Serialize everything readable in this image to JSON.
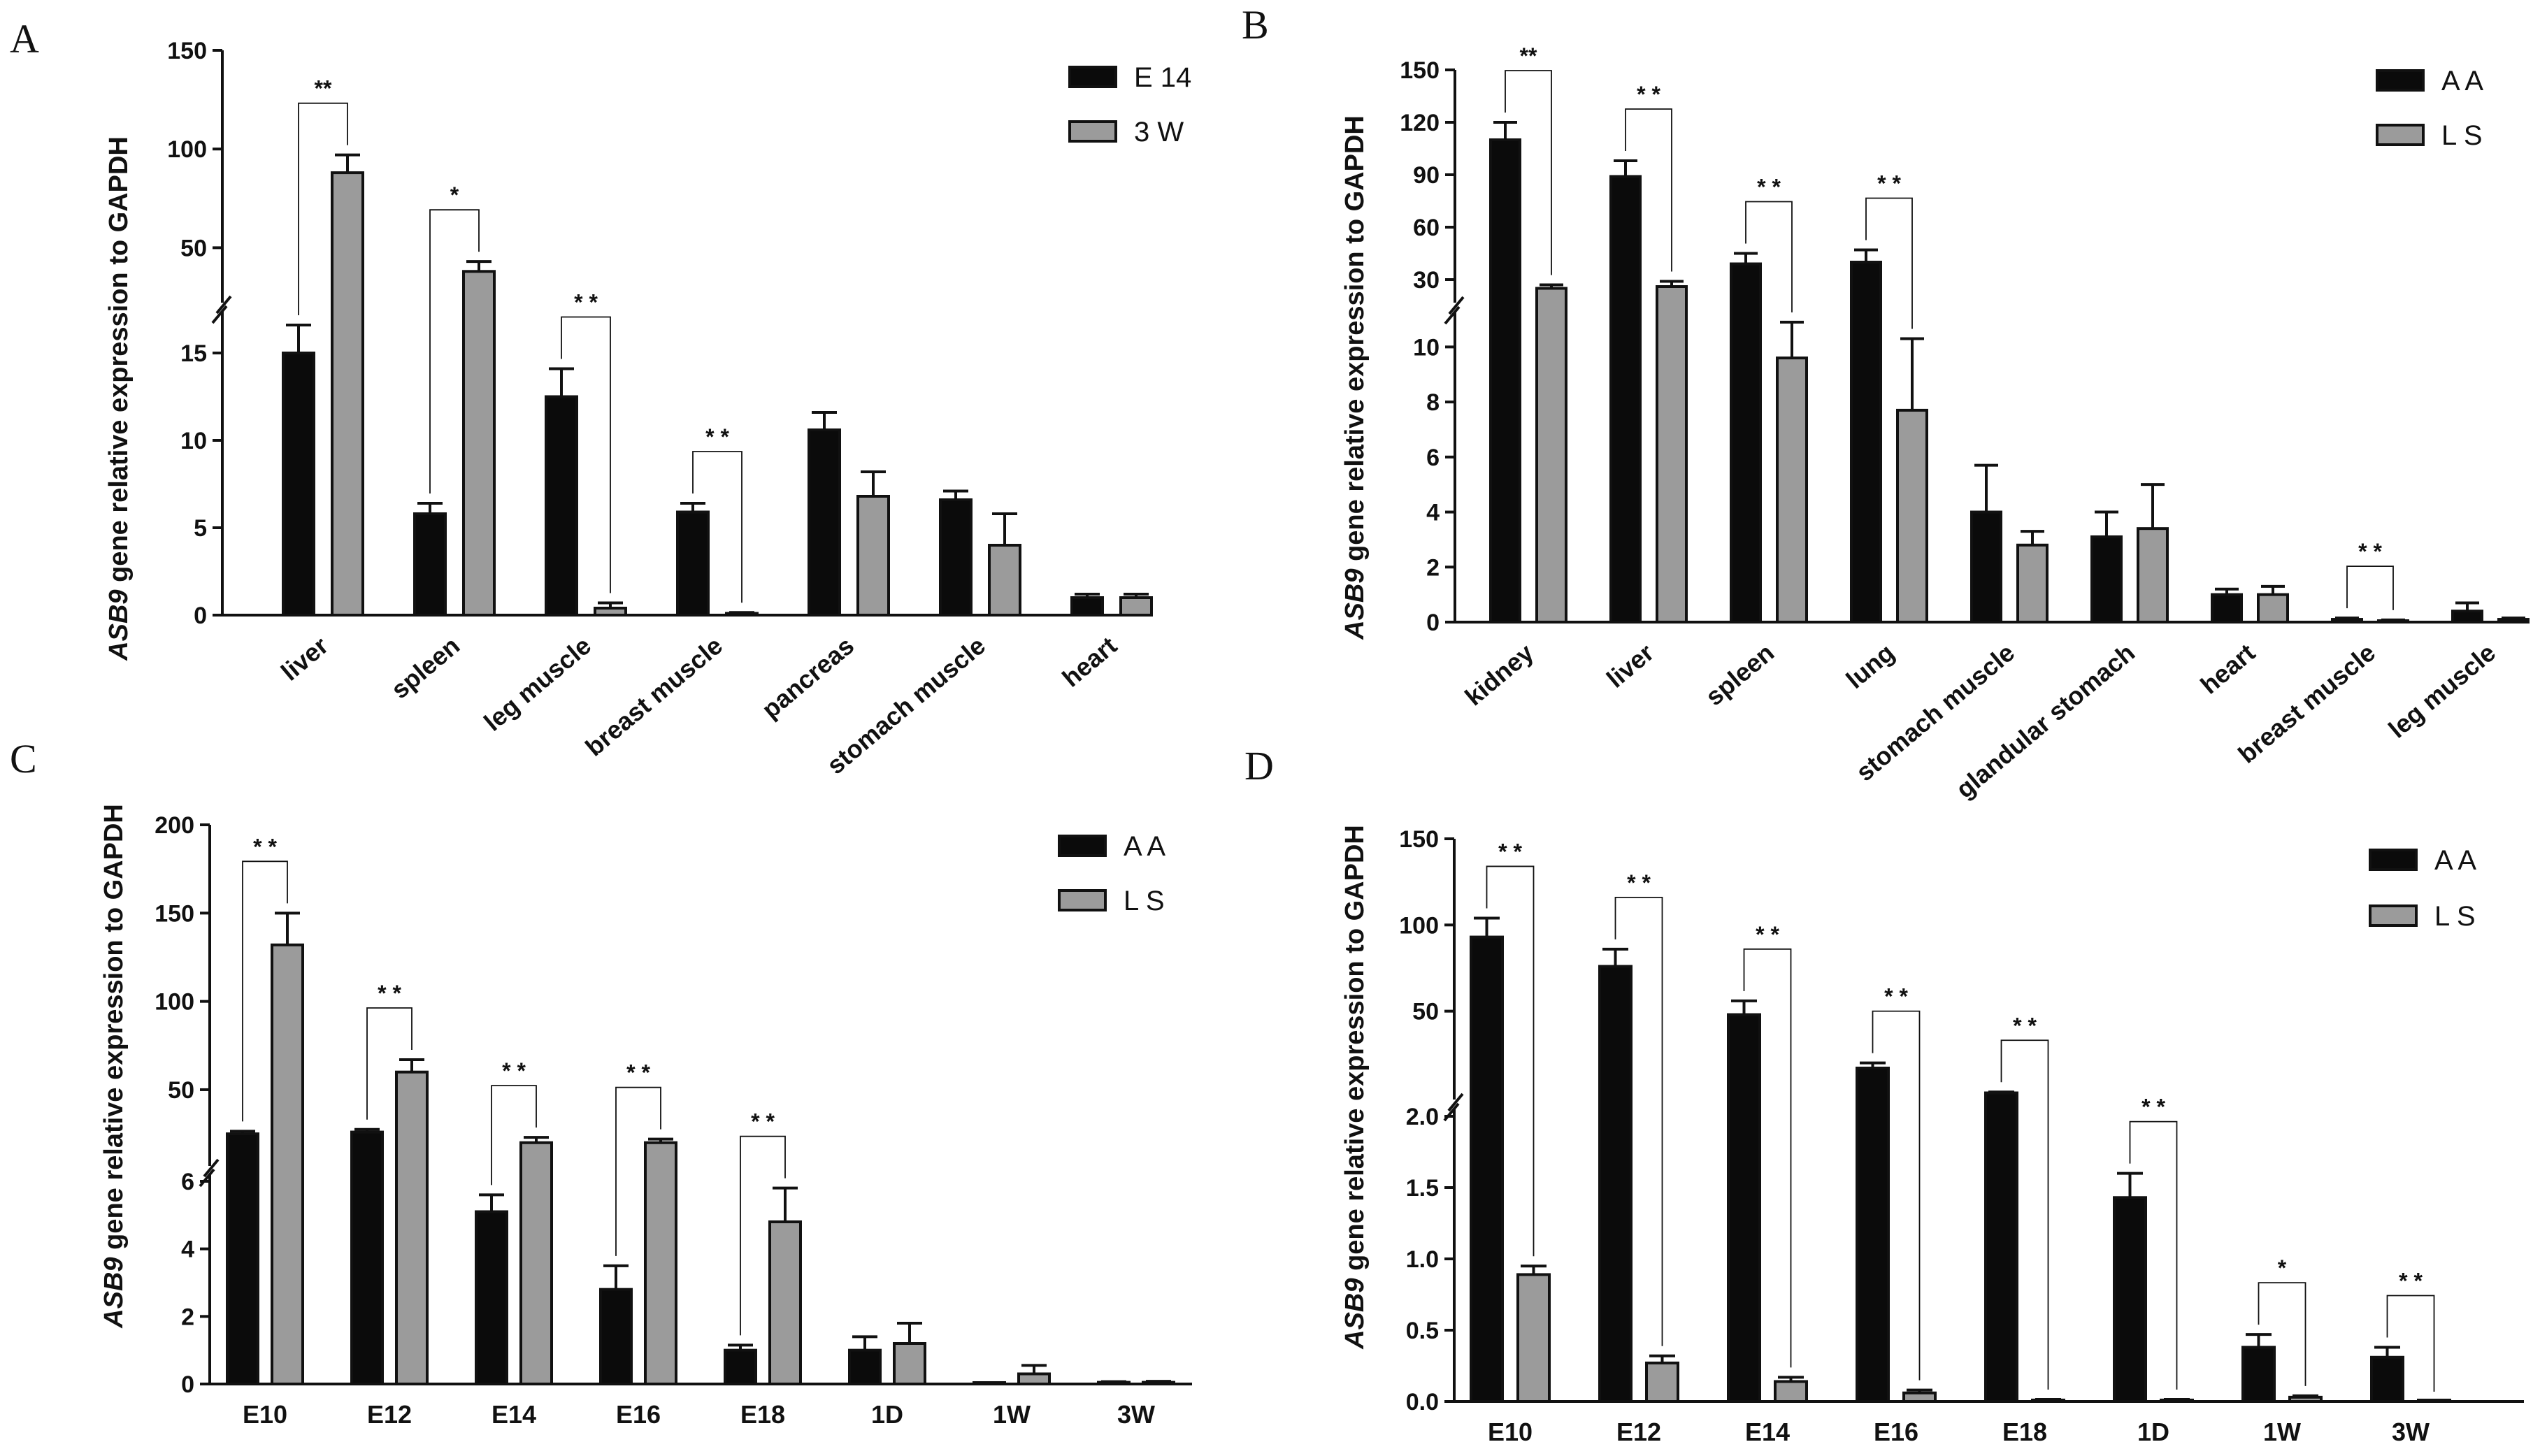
{
  "colors": {
    "black_series": "#0b0b0b",
    "grey_series": "#9b9b9b",
    "axis": "#111111"
  },
  "chart_data": [
    {
      "panel_label": "A",
      "type": "bar",
      "ylabel": {
        "gene": "ASB9",
        "rest": "gene relative expression to GAPDH"
      },
      "categories": [
        "liver",
        "spleen",
        "leg muscle",
        "breast muscle",
        "pancreas",
        "stomach muscle",
        "heart"
      ],
      "series": [
        {
          "name": "E 14",
          "values": [
            15.0,
            5.8,
            12.5,
            5.9,
            10.6,
            6.6,
            1.0
          ],
          "errors": [
            1.6,
            0.6,
            1.6,
            0.5,
            1.0,
            0.5,
            0.2
          ]
        },
        {
          "name": "3 W",
          "values": [
            88,
            38,
            0.4,
            0.1,
            6.8,
            4.0,
            1.0
          ],
          "errors": [
            9,
            5,
            0.3,
            0.05,
            1.4,
            1.8,
            0.2
          ]
        }
      ],
      "y_segments": [
        {
          "min": 0,
          "max": 17,
          "ticks": [
            0,
            5,
            10,
            15
          ]
        },
        {
          "min": 25,
          "max": 150,
          "ticks": [
            50,
            100,
            150
          ]
        }
      ],
      "significance": [
        {
          "category": "liver",
          "label": "**"
        },
        {
          "category": "spleen",
          "label": "*"
        },
        {
          "category": "leg muscle",
          "label": "* *"
        },
        {
          "category": "breast muscle",
          "label": "* *"
        }
      ]
    },
    {
      "panel_label": "B",
      "type": "bar",
      "ylabel": {
        "gene": "ASB9",
        "rest": "gene  relative expression to GAPDH"
      },
      "categories": [
        "kidney",
        "liver",
        "spleen",
        "lung",
        "stomach muscle",
        "glandular stomach",
        "heart",
        "breast muscle",
        "leg muscle"
      ],
      "series": [
        {
          "name": "A A",
          "values": [
            110,
            89,
            39,
            40,
            4.0,
            3.1,
            1.0,
            0.1,
            0.4
          ],
          "errors": [
            10,
            9,
            6,
            7,
            1.7,
            0.9,
            0.2,
            0.05,
            0.3
          ]
        },
        {
          "name": "L S",
          "values": [
            25,
            26,
            9.6,
            7.7,
            2.8,
            3.4,
            1.0,
            0.05,
            0.1
          ],
          "errors": [
            2,
            3,
            1.3,
            2.6,
            0.5,
            1.6,
            0.3,
            0.03,
            0.05
          ]
        }
      ],
      "y_segments": [
        {
          "min": 0,
          "max": 11,
          "ticks": [
            0,
            2,
            4,
            6,
            8,
            10
          ]
        },
        {
          "min": 20,
          "max": 150,
          "ticks": [
            30,
            60,
            90,
            120,
            150
          ]
        }
      ],
      "significance": [
        {
          "category": "kidney",
          "label": "**"
        },
        {
          "category": "liver",
          "label": "* *"
        },
        {
          "category": "spleen",
          "label": "* *"
        },
        {
          "category": "lung",
          "label": "* *"
        },
        {
          "category": "breast muscle",
          "label": "* *"
        }
      ]
    },
    {
      "panel_label": "C",
      "type": "bar",
      "ylabel": {
        "gene": "ASB9",
        "rest": "gene  relative expression to GAPDH"
      },
      "categories": [
        "E10",
        "E12",
        "E14",
        "E16",
        "E18",
        "1D",
        "1W",
        "3W"
      ],
      "series": [
        {
          "name": "A A",
          "values": [
            25,
            26,
            5.1,
            2.8,
            1.0,
            1.0,
            0.02,
            0.05
          ],
          "errors": [
            1.5,
            1.5,
            0.5,
            0.7,
            0.15,
            0.4,
            0.01,
            0.02
          ]
        },
        {
          "name": "L S",
          "values": [
            132,
            60,
            20,
            20,
            4.8,
            1.2,
            0.3,
            0.05
          ],
          "errors": [
            18,
            7,
            3,
            2,
            1.0,
            0.6,
            0.25,
            0.03
          ]
        }
      ],
      "y_segments": [
        {
          "min": 0,
          "max": 6,
          "ticks": [
            0,
            2,
            4,
            6
          ]
        },
        {
          "min": 10,
          "max": 200,
          "ticks": [
            50,
            100,
            150,
            200
          ]
        }
      ],
      "significance": [
        {
          "category": "E10",
          "label": "* *"
        },
        {
          "category": "E12",
          "label": "* *"
        },
        {
          "category": "E14",
          "label": "* *"
        },
        {
          "category": "E16",
          "label": "* *"
        },
        {
          "category": "E18",
          "label": "* *"
        }
      ]
    },
    {
      "panel_label": "D",
      "type": "bar",
      "ylabel": {
        "gene": "ASB9",
        "rest": "gene  relative expression to GAPDH"
      },
      "categories": [
        "E10",
        "E12",
        "E14",
        "E16",
        "E18",
        "1D",
        "1W",
        "3W"
      ],
      "series": [
        {
          "name": "A A",
          "values": [
            93,
            76,
            48,
            17,
            2.6,
            1.43,
            0.38,
            0.31
          ],
          "errors": [
            11,
            10,
            8,
            3,
            0.5,
            0.17,
            0.09,
            0.07
          ]
        },
        {
          "name": "L S",
          "values": [
            0.89,
            0.27,
            0.14,
            0.06,
            0.01,
            0.01,
            0.03,
            0.0
          ],
          "errors": [
            0.06,
            0.05,
            0.03,
            0.02,
            0.005,
            0.005,
            0.01,
            0.0
          ]
        }
      ],
      "y_segments": [
        {
          "min": 0,
          "max": 2.0,
          "ticks": [
            "0.0",
            "0.5",
            "1.0",
            "1.5",
            "2.0"
          ]
        },
        {
          "min": 2,
          "max": 150,
          "ticks": [
            50,
            100,
            150
          ]
        }
      ],
      "significance": [
        {
          "category": "E10",
          "label": "* *"
        },
        {
          "category": "E12",
          "label": "* *"
        },
        {
          "category": "E14",
          "label": "* *"
        },
        {
          "category": "E16",
          "label": "* *"
        },
        {
          "category": "E18",
          "label": "* *"
        },
        {
          "category": "1D",
          "label": "* *"
        },
        {
          "category": "1W",
          "label": "*"
        },
        {
          "category": "3W",
          "label": "* *"
        }
      ]
    }
  ]
}
